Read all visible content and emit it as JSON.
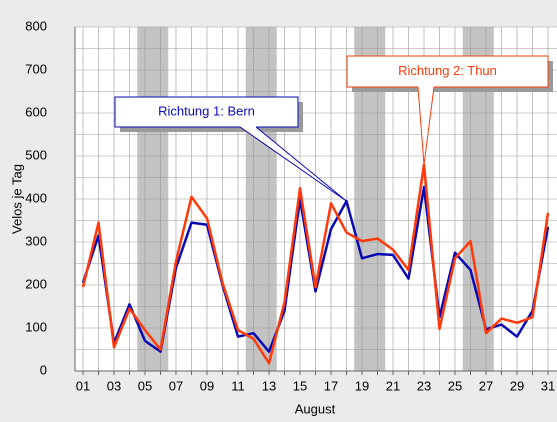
{
  "chart_data": {
    "type": "line",
    "x_label": "August",
    "y_label": "Velos je Tag",
    "categories": [
      "01",
      null,
      "03",
      null,
      "05",
      null,
      "07",
      null,
      "09",
      null,
      "11",
      null,
      "13",
      null,
      "15",
      null,
      "17",
      null,
      "19",
      null,
      "21",
      null,
      "23",
      null,
      "25",
      null,
      "27",
      null,
      "29",
      null,
      "31"
    ],
    "series": [
      {
        "name": "Richtung 1: Bern",
        "color": "#0a0ab4",
        "values": [
          205,
          315,
          65,
          155,
          70,
          45,
          240,
          345,
          340,
          200,
          80,
          88,
          45,
          140,
          400,
          185,
          330,
          395,
          262,
          272,
          270,
          215,
          428,
          125,
          275,
          235,
          97,
          108,
          80,
          140,
          335
        ]
      },
      {
        "name": "Richtung 2: Thun",
        "color": "#ff3a0a",
        "values": [
          195,
          345,
          55,
          145,
          95,
          50,
          255,
          405,
          355,
          205,
          95,
          75,
          18,
          160,
          425,
          195,
          390,
          322,
          302,
          308,
          282,
          235,
          480,
          98,
          262,
          302,
          88,
          122,
          112,
          125,
          368
        ]
      }
    ],
    "annotations": [
      {
        "series": 0,
        "point": 17
      },
      {
        "series": 1,
        "point": 22
      }
    ],
    "shaded_categories": [
      [
        4,
        5
      ],
      [
        11,
        12
      ],
      [
        18,
        19
      ],
      [
        25,
        26
      ]
    ],
    "ylim": [
      0,
      800
    ],
    "yticks": [
      0,
      100,
      200,
      300,
      400,
      500,
      600,
      700,
      800
    ],
    "grid": true
  }
}
